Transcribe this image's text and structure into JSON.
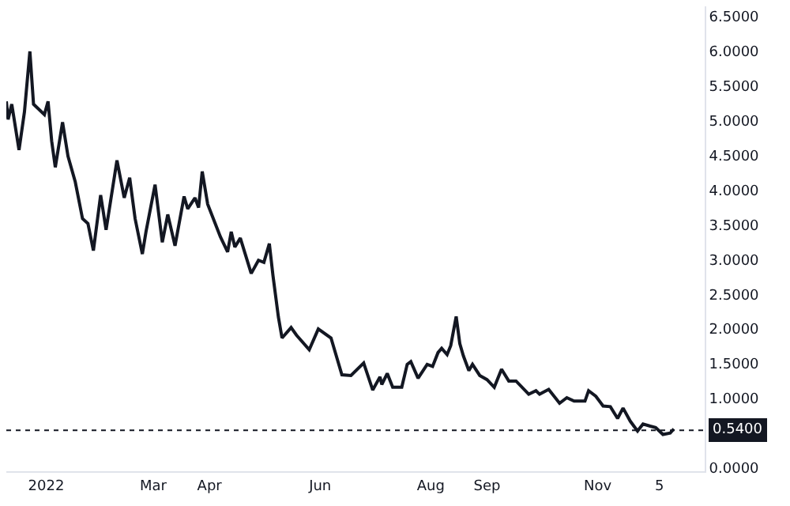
{
  "chart_data": {
    "type": "line",
    "x": [
      "2021-12-10",
      "2021-12-11",
      "2021-12-13",
      "2021-12-17",
      "2021-12-20",
      "2021-12-23",
      "2021-12-25",
      "2021-12-31",
      "2022-01-02",
      "2022-01-04",
      "2022-01-06",
      "2022-01-10",
      "2022-01-13",
      "2022-01-17",
      "2022-01-21",
      "2022-01-24",
      "2022-01-27",
      "2022-01-31",
      "2022-02-03",
      "2022-02-09",
      "2022-02-13",
      "2022-02-16",
      "2022-02-19",
      "2022-02-23",
      "2022-02-25",
      "2022-03-02",
      "2022-03-06",
      "2022-03-09",
      "2022-03-13",
      "2022-03-18",
      "2022-03-20",
      "2022-03-24",
      "2022-03-26",
      "2022-03-28",
      "2022-03-31",
      "2022-04-07",
      "2022-04-11",
      "2022-04-13",
      "2022-04-15",
      "2022-04-18",
      "2022-04-24",
      "2022-04-28",
      "2022-05-01",
      "2022-05-04",
      "2022-05-06",
      "2022-05-09",
      "2022-05-11",
      "2022-05-16",
      "2022-05-19",
      "2022-05-26",
      "2022-05-31",
      "2022-06-07",
      "2022-06-13",
      "2022-06-18",
      "2022-06-25",
      "2022-06-30",
      "2022-07-04",
      "2022-07-05",
      "2022-07-08",
      "2022-07-11",
      "2022-07-16",
      "2022-07-19",
      "2022-07-21",
      "2022-07-25",
      "2022-07-30",
      "2022-08-02",
      "2022-08-05",
      "2022-08-07",
      "2022-08-10",
      "2022-08-12",
      "2022-08-15",
      "2022-08-17",
      "2022-08-19",
      "2022-08-22",
      "2022-08-24",
      "2022-08-28",
      "2022-09-01",
      "2022-09-05",
      "2022-09-09",
      "2022-09-13",
      "2022-09-17",
      "2022-09-24",
      "2022-09-28",
      "2022-09-30",
      "2022-10-05",
      "2022-10-11",
      "2022-10-15",
      "2022-10-19",
      "2022-10-25",
      "2022-10-27",
      "2022-10-31",
      "2022-11-04",
      "2022-11-08",
      "2022-11-12",
      "2022-11-15",
      "2022-11-19",
      "2022-11-23",
      "2022-11-26",
      "2022-11-30",
      "2022-12-03",
      "2022-12-07",
      "2022-12-11",
      "2022-12-13"
    ],
    "series": [
      {
        "color": "#131722",
        "values": [
          5.28,
          5.02,
          5.24,
          4.58,
          5.13,
          6.0,
          5.24,
          5.09,
          5.28,
          4.71,
          4.33,
          4.98,
          4.49,
          4.12,
          3.59,
          3.52,
          3.13,
          3.93,
          3.43,
          4.43,
          3.89,
          4.18,
          3.59,
          3.08,
          3.4,
          4.08,
          3.25,
          3.65,
          3.2,
          3.91,
          3.73,
          3.89,
          3.75,
          4.27,
          3.8,
          3.33,
          3.11,
          3.4,
          3.18,
          3.31,
          2.8,
          2.99,
          2.96,
          3.23,
          2.77,
          2.17,
          1.87,
          2.02,
          1.91,
          1.7,
          2.0,
          1.87,
          1.34,
          1.33,
          1.51,
          1.12,
          1.31,
          1.2,
          1.36,
          1.16,
          1.16,
          1.49,
          1.53,
          1.29,
          1.49,
          1.46,
          1.66,
          1.72,
          1.63,
          1.76,
          2.18,
          1.79,
          1.61,
          1.4,
          1.49,
          1.33,
          1.27,
          1.16,
          1.42,
          1.25,
          1.25,
          1.06,
          1.11,
          1.06,
          1.13,
          0.93,
          1.01,
          0.96,
          0.96,
          1.11,
          1.03,
          0.89,
          0.88,
          0.71,
          0.86,
          0.67,
          0.53,
          0.63,
          0.6,
          0.58,
          0.48,
          0.5,
          0.56
        ]
      }
    ],
    "xlim": [
      "2021-12-10",
      "2022-12-30"
    ],
    "xticks": [
      {
        "value": "2022-01-01",
        "label": "2022"
      },
      {
        "value": "2022-03-01",
        "label": "Mar"
      },
      {
        "value": "2022-04-01",
        "label": "Apr"
      },
      {
        "value": "2022-06-01",
        "label": "Jun"
      },
      {
        "value": "2022-08-01",
        "label": "Aug"
      },
      {
        "value": "2022-09-01",
        "label": "Sep"
      },
      {
        "value": "2022-11-01",
        "label": "Nov"
      },
      {
        "value": "2022-12-05",
        "label": "5"
      }
    ],
    "ylim": [
      -0.05,
      6.65
    ],
    "yticks": [
      {
        "value": 0,
        "label": "0.0000"
      },
      {
        "value": 1,
        "label": "1.0000"
      },
      {
        "value": 1.5,
        "label": "1.5000"
      },
      {
        "value": 2,
        "label": "2.0000"
      },
      {
        "value": 2.5,
        "label": "2.5000"
      },
      {
        "value": 3,
        "label": "3.0000"
      },
      {
        "value": 3.5,
        "label": "3.5000"
      },
      {
        "value": 4,
        "label": "4.0000"
      },
      {
        "value": 4.5,
        "label": "4.5000"
      },
      {
        "value": 5,
        "label": "5.0000"
      },
      {
        "value": 5.5,
        "label": "5.5000"
      },
      {
        "value": 6,
        "label": "6.0000"
      },
      {
        "value": 6.5,
        "label": "6.5000"
      }
    ],
    "ref_lines": [
      {
        "axis": "y",
        "value": 0.54,
        "label": "0.5400",
        "color": "#131722",
        "line_style": "dotted"
      }
    ],
    "legend": false,
    "marker": "none",
    "line_style": "solid"
  }
}
